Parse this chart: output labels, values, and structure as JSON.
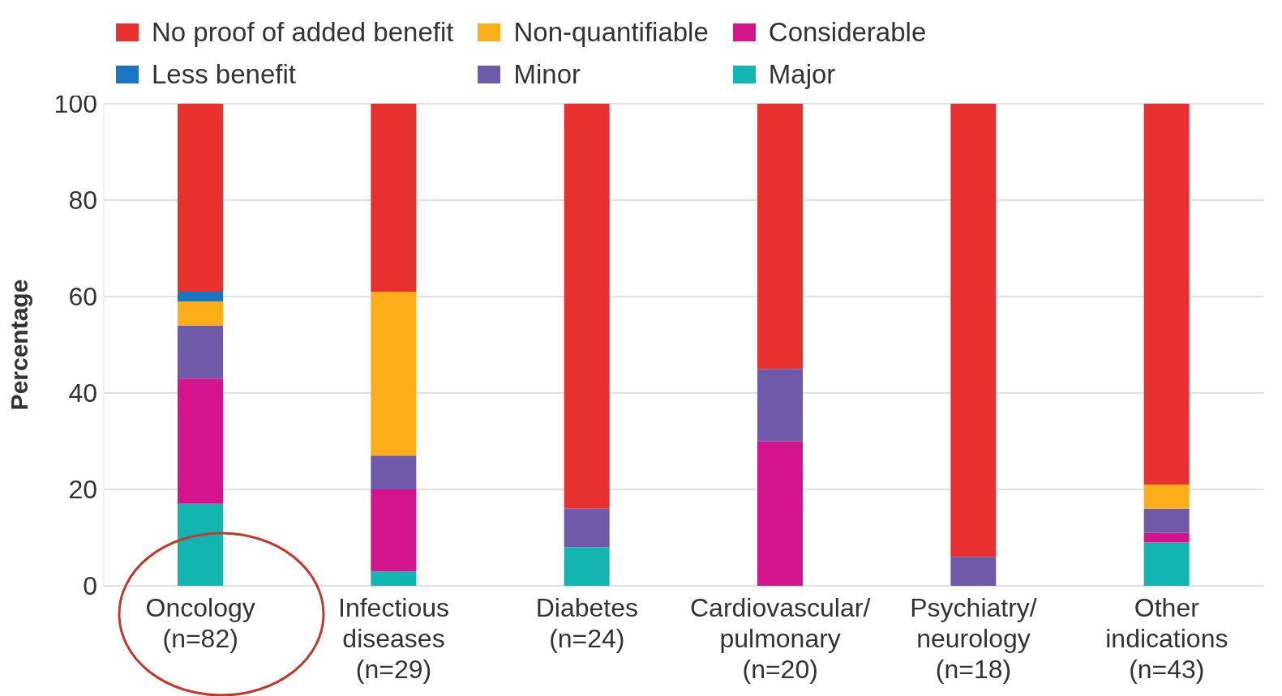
{
  "chart_data": {
    "type": "bar",
    "stacked": true,
    "ylabel": "Percentage",
    "categories": [
      "Oncology\n(n=82)",
      "Infectious\ndiseases\n(n=29)",
      "Diabetes\n(n=24)",
      "Cardiovascular/\npulmonary\n(n=20)",
      "Psychiatry/\nneurology\n(n=18)",
      "Other\nindications\n(n=43)"
    ],
    "series": [
      {
        "name": "Major",
        "color": "#12b5b0",
        "values": [
          17,
          3,
          8,
          0,
          0,
          9
        ]
      },
      {
        "name": "Considerable",
        "color": "#d4148c",
        "values": [
          26,
          17,
          0,
          30,
          0,
          2
        ]
      },
      {
        "name": "Minor",
        "color": "#6e5aa8",
        "values": [
          11,
          7,
          8,
          15,
          6,
          5
        ]
      },
      {
        "name": "Non-quantifiable",
        "color": "#fbad1a",
        "values": [
          5,
          34,
          0,
          0,
          0,
          5
        ]
      },
      {
        "name": "Less benefit",
        "color": "#1a75c2",
        "values": [
          2,
          0,
          0,
          0,
          0,
          0
        ]
      },
      {
        "name": "No proof of added benefit",
        "color": "#e8312f",
        "values": [
          39,
          39,
          84,
          55,
          94,
          79
        ]
      }
    ],
    "ylim": [
      0,
      100
    ],
    "yticks": [
      0,
      20,
      40,
      60,
      80,
      100
    ],
    "grid": "y",
    "legend": "top"
  }
}
